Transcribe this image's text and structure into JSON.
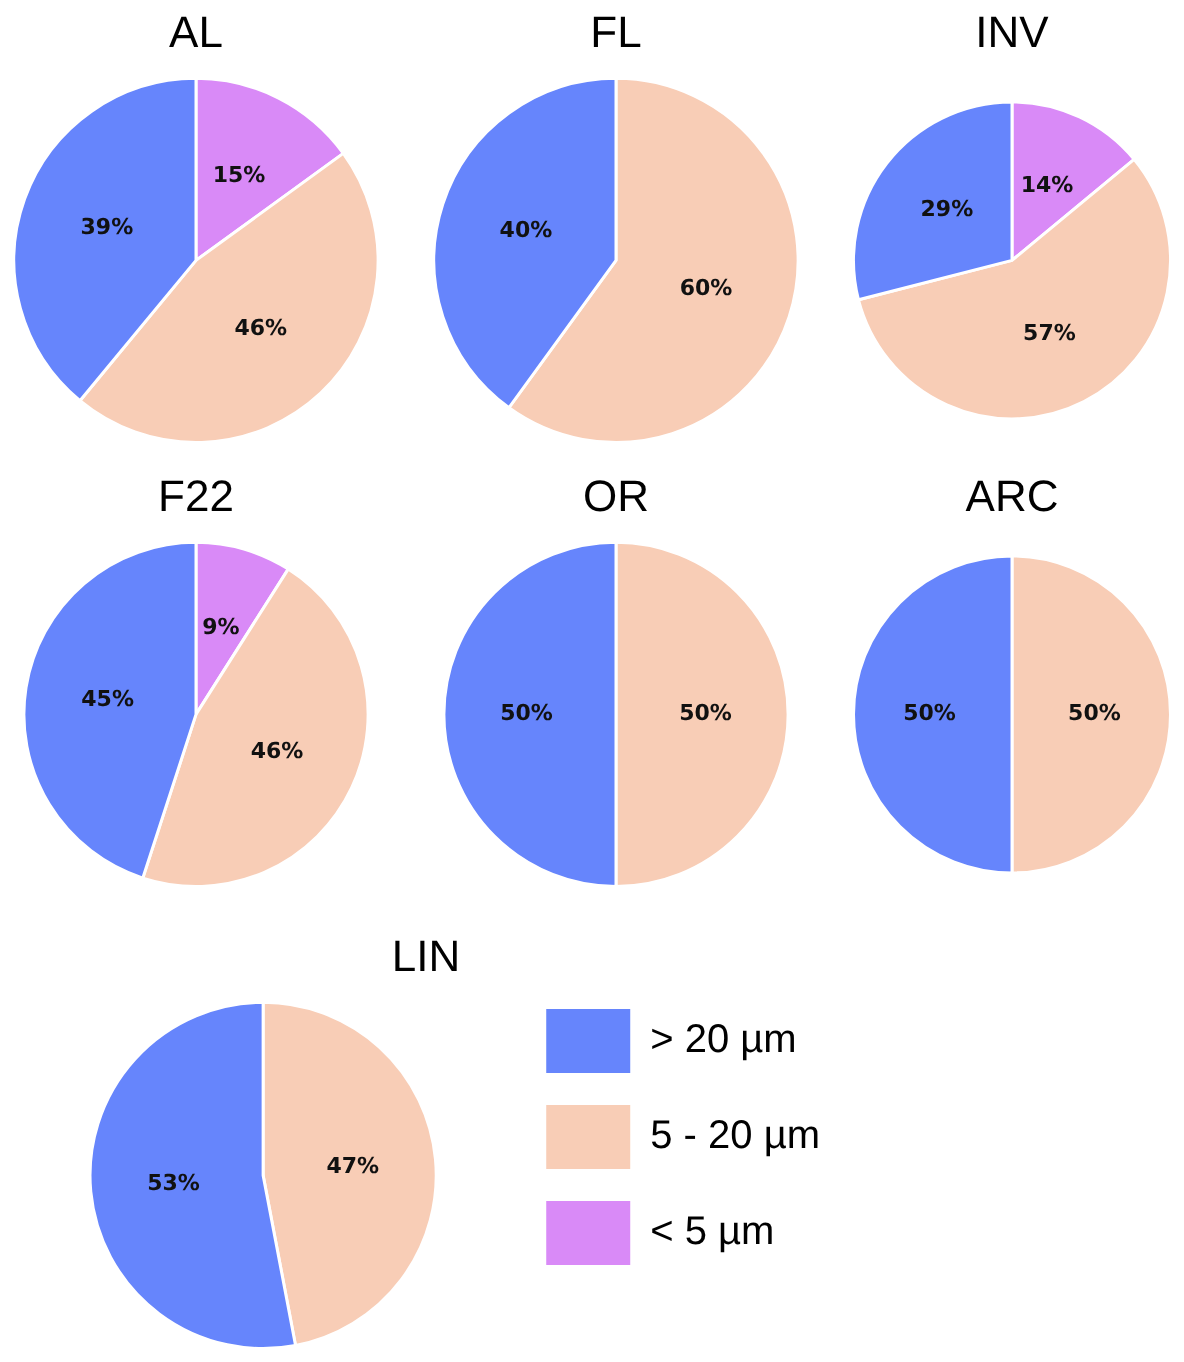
{
  "chart_data": [
    {
      "type": "pie",
      "title": "AL",
      "categories": [
        null,
        null,
        null
      ],
      "values": [
        15,
        46,
        39
      ],
      "value_labels": [
        "15%",
        "46%",
        "39%"
      ],
      "colors": [
        "#d98af7",
        "#f8cdb6",
        "#6685fc"
      ],
      "legend": false
    },
    {
      "type": "pie",
      "title": "FL",
      "categories": [
        null,
        null,
        null
      ],
      "values": [
        0,
        60,
        40
      ],
      "value_labels": [
        null,
        "60%",
        "40%"
      ],
      "colors": [
        "#d98af7",
        "#f8cdb6",
        "#6685fc"
      ],
      "legend": false
    },
    {
      "type": "pie",
      "title": "INV",
      "categories": [
        null,
        null,
        null
      ],
      "values": [
        14,
        57,
        29
      ],
      "value_labels": [
        "14%",
        "57%",
        "29%"
      ],
      "colors": [
        "#d98af7",
        "#f8cdb6",
        "#6685fc"
      ],
      "legend": false
    },
    {
      "type": "pie",
      "title": "F22",
      "categories": [
        null,
        null,
        null
      ],
      "values": [
        9,
        46,
        45
      ],
      "value_labels": [
        "9%",
        "46%",
        "45%"
      ],
      "colors": [
        "#d98af7",
        "#f8cdb6",
        "#6685fc"
      ],
      "legend": false
    },
    {
      "type": "pie",
      "title": "OR",
      "categories": [
        null,
        null,
        null
      ],
      "values": [
        0,
        50,
        50
      ],
      "value_labels": [
        null,
        "50%",
        "50%"
      ],
      "colors": [
        "#d98af7",
        "#f8cdb6",
        "#6685fc"
      ],
      "legend": false
    },
    {
      "type": "pie",
      "title": "ARC",
      "categories": [
        null,
        null,
        null
      ],
      "values": [
        0,
        50,
        50
      ],
      "value_labels": [
        null,
        "50%",
        "50%"
      ],
      "colors": [
        "#d98af7",
        "#f8cdb6",
        "#6685fc"
      ],
      "legend": false
    },
    {
      "type": "pie",
      "title": "LIN",
      "categories": [
        "< 5 µm",
        "5 - 20 µm",
        "> 20 µm"
      ],
      "values": [
        0,
        47,
        53
      ],
      "value_labels": [
        null,
        "47%",
        "53%"
      ],
      "colors": [
        "#d98af7",
        "#f8cdb6",
        "#6685fc"
      ],
      "legend": "right"
    }
  ]
}
